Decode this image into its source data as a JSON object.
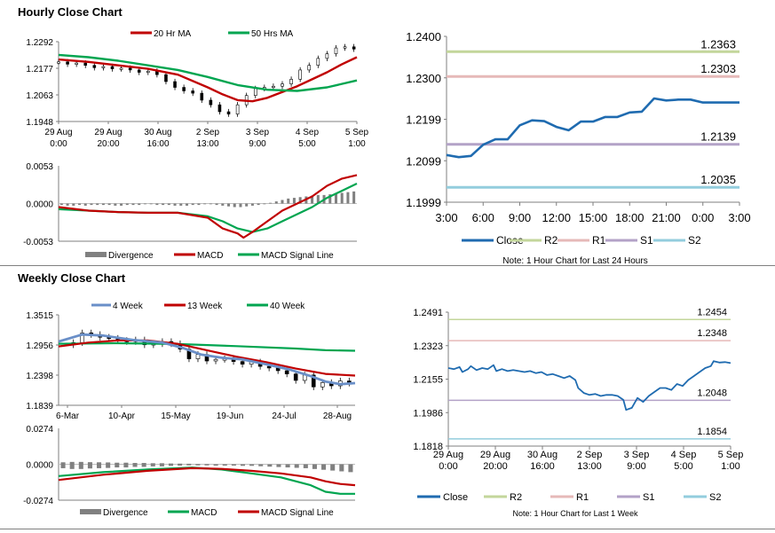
{
  "sections": {
    "hourly_title": "Hourly Close Chart",
    "weekly_title": "Weekly Close Chart"
  },
  "colors": {
    "close": "#1f6bb0",
    "ma_red": "#c00000",
    "ma_green": "#00a550",
    "four_week": "#6a8fc8",
    "r2": "#c3d69b",
    "r1": "#e6b9b8",
    "s1": "#b3a2c7",
    "s2": "#93cddd",
    "divergence": "#808080",
    "candle": "#000000"
  },
  "chart_data": [
    {
      "id": "hourly_price",
      "type": "line",
      "title": "",
      "legend": [
        "20 Hr MA",
        "50 Hrs MA"
      ],
      "legend_position": "top",
      "ylim": [
        1.1948,
        1.2292
      ],
      "yticks": [
        "1.2292",
        "1.2177",
        "1.2063",
        "1.1948"
      ],
      "xticks": [
        [
          "29 Aug",
          "0:00"
        ],
        [
          "29 Aug",
          "20:00"
        ],
        [
          "30 Aug",
          "16:00"
        ],
        [
          "2 Sep",
          "13:00"
        ],
        [
          "3 Sep",
          "9:00"
        ],
        [
          "4 Sep",
          "5:00"
        ],
        [
          "5 Sep",
          "1:00"
        ]
      ],
      "xrange": [
        0,
        100
      ],
      "series": [
        {
          "name": "Close (candles)",
          "x": [
            0,
            3,
            6,
            9,
            12,
            15,
            18,
            21,
            24,
            27,
            30,
            33,
            36,
            39,
            42,
            45,
            48,
            51,
            54,
            57,
            60,
            63,
            66,
            69,
            72,
            75,
            78,
            81,
            84,
            87,
            90,
            93,
            96,
            99
          ],
          "values": [
            1.2205,
            1.2195,
            1.22,
            1.219,
            1.218,
            1.2185,
            1.2175,
            1.2178,
            1.217,
            1.216,
            1.2165,
            1.215,
            1.212,
            1.2095,
            1.208,
            1.207,
            1.204,
            1.202,
            1.199,
            1.198,
            1.202,
            1.206,
            1.209,
            1.2095,
            1.21,
            1.211,
            1.213,
            1.217,
            1.219,
            1.222,
            1.224,
            1.2265,
            1.227,
            1.226
          ]
        },
        {
          "name": "20 Hr MA",
          "x": [
            0,
            10,
            20,
            30,
            40,
            50,
            55,
            60,
            65,
            70,
            75,
            80,
            85,
            90,
            95,
            100
          ],
          "values": [
            1.2215,
            1.2205,
            1.219,
            1.2175,
            1.215,
            1.2095,
            1.2065,
            1.204,
            1.2035,
            1.205,
            1.2075,
            1.21,
            1.213,
            1.216,
            1.2195,
            1.2225
          ]
        },
        {
          "name": "50 Hrs MA",
          "x": [
            0,
            10,
            20,
            30,
            40,
            50,
            60,
            70,
            80,
            90,
            100
          ],
          "values": [
            1.2235,
            1.2225,
            1.221,
            1.219,
            1.217,
            1.214,
            1.2105,
            1.2085,
            1.208,
            1.2095,
            1.2125
          ]
        }
      ]
    },
    {
      "id": "hourly_macd",
      "type": "bar",
      "title": "",
      "legend": [
        "Divergence",
        "MACD",
        "MACD Signal Line"
      ],
      "legend_position": "bottom",
      "ylim": [
        -0.0053,
        0.0053
      ],
      "yticks": [
        "0.0053",
        "0.0000",
        "-0.0053"
      ],
      "xrange": [
        0,
        100
      ],
      "divergence": [
        -0.0002,
        -0.0003,
        -0.0003,
        -0.0002,
        -0.0003,
        -0.0002,
        -0.0002,
        -0.0002,
        -0.0002,
        -0.0003,
        -0.0003,
        -0.0002,
        -0.0002,
        -0.0002,
        -0.0001,
        -0.0001,
        -0.0002,
        -0.0002,
        -0.0002,
        -0.0003,
        -0.0003,
        -0.0003,
        -0.0002,
        -0.0002,
        -0.0001,
        -0.0001,
        -0.0002,
        -0.0003,
        -0.0004,
        -0.0005,
        -0.0005,
        -0.0004,
        -0.0003,
        -0.0002,
        -0.0001,
        0.0001,
        0.0003,
        0.0005,
        0.0007,
        0.0008,
        0.0009,
        0.001,
        0.0011,
        0.0012,
        0.0012,
        0.0013,
        0.0014,
        0.0015,
        0.0016,
        0.0017
      ],
      "series": [
        {
          "name": "MACD",
          "x": [
            0,
            10,
            20,
            30,
            40,
            50,
            55,
            60,
            62,
            65,
            70,
            75,
            80,
            85,
            90,
            95,
            100
          ],
          "values": [
            -0.0005,
            -0.001,
            -0.0012,
            -0.0013,
            -0.0013,
            -0.002,
            -0.0035,
            -0.0042,
            -0.0048,
            -0.004,
            -0.0025,
            -0.001,
            0.0,
            0.001,
            0.0025,
            0.0035,
            0.004
          ]
        },
        {
          "name": "MACD Signal Line",
          "x": [
            0,
            10,
            20,
            30,
            40,
            50,
            55,
            60,
            65,
            70,
            75,
            80,
            85,
            90,
            95,
            100
          ],
          "values": [
            -0.0008,
            -0.001,
            -0.0012,
            -0.0013,
            -0.0013,
            -0.0018,
            -0.0025,
            -0.0035,
            -0.004,
            -0.0035,
            -0.0025,
            -0.0015,
            -0.0005,
            0.0008,
            0.0018,
            0.0028
          ]
        }
      ]
    },
    {
      "id": "hourly_pivot",
      "type": "line",
      "title": "",
      "note": "Note: 1 Hour Chart for Last 24 Hours",
      "legend": [
        "Close",
        "R2",
        "R1",
        "S1",
        "S2"
      ],
      "legend_position": "bottom",
      "ylim": [
        1.1999,
        1.24
      ],
      "yticks": [
        "1.2400",
        "1.2300",
        "1.2199",
        "1.2099",
        "1.1999"
      ],
      "categories": [
        "3:00",
        "6:00",
        "9:00",
        "12:00",
        "15:00",
        "18:00",
        "21:00",
        "0:00",
        "3:00"
      ],
      "levels": [
        {
          "name": "R2",
          "value": 1.2363,
          "label": "1.2363"
        },
        {
          "name": "R1",
          "value": 1.2303,
          "label": "1.2303"
        },
        {
          "name": "S1",
          "value": 1.2139,
          "label": "1.2139"
        },
        {
          "name": "S2",
          "value": 1.2035,
          "label": "1.2035"
        }
      ],
      "series": [
        {
          "name": "Close",
          "x": [
            0,
            1,
            2,
            3,
            4,
            5,
            6,
            7,
            8,
            9,
            10,
            11,
            12,
            13,
            14,
            15,
            16,
            17,
            18,
            19,
            20,
            21,
            22,
            23,
            24
          ],
          "values": [
            1.2113,
            1.2108,
            1.2111,
            1.2138,
            1.2151,
            1.2151,
            1.2185,
            1.2197,
            1.2195,
            1.2181,
            1.2173,
            1.2194,
            1.2194,
            1.2205,
            1.2205,
            1.2216,
            1.2218,
            1.225,
            1.2245,
            1.2247,
            1.2247,
            1.224,
            1.224,
            1.224,
            1.224
          ]
        }
      ]
    },
    {
      "id": "weekly_price",
      "type": "line",
      "title": "",
      "legend": [
        "4 Week",
        "13 Week",
        "40 Week"
      ],
      "legend_position": "top",
      "ylim": [
        1.1839,
        1.3515
      ],
      "yticks": [
        "1.3515",
        "1.2956",
        "1.2398",
        "1.1839"
      ],
      "xticks": [
        "6-Mar",
        "10-Apr",
        "15-May",
        "19-Jun",
        "24-Jul",
        "28-Aug"
      ],
      "xrange": [
        0,
        100
      ],
      "series": [
        {
          "name": "Weekly candles",
          "x": [
            5,
            8,
            11,
            14,
            17,
            20,
            23,
            26,
            29,
            32,
            35,
            38,
            41,
            44,
            47,
            50,
            53,
            56,
            59,
            62,
            65,
            68,
            71,
            74,
            77,
            80,
            83,
            86,
            89,
            92,
            95,
            98
          ],
          "values": [
            1.3,
            1.318,
            1.315,
            1.31,
            1.308,
            1.304,
            1.302,
            1.305,
            1.296,
            1.298,
            1.302,
            1.298,
            1.288,
            1.27,
            1.278,
            1.266,
            1.269,
            1.27,
            1.265,
            1.26,
            1.264,
            1.256,
            1.253,
            1.248,
            1.242,
            1.23,
            1.24,
            1.218,
            1.226,
            1.22,
            1.229,
            1.225
          ]
        },
        {
          "name": "4 Week",
          "x": [
            0,
            8,
            15,
            25,
            35,
            42,
            48,
            55,
            62,
            70,
            78,
            85,
            90,
            95,
            100
          ],
          "values": [
            1.302,
            1.315,
            1.313,
            1.305,
            1.3,
            1.29,
            1.278,
            1.272,
            1.269,
            1.26,
            1.25,
            1.238,
            1.228,
            1.223,
            1.225
          ]
        },
        {
          "name": "13 Week",
          "x": [
            0,
            10,
            20,
            30,
            40,
            50,
            60,
            70,
            80,
            90,
            100
          ],
          "values": [
            1.293,
            1.3,
            1.304,
            1.304,
            1.298,
            1.286,
            1.274,
            1.264,
            1.252,
            1.242,
            1.239
          ]
        },
        {
          "name": "40 Week",
          "x": [
            0,
            20,
            40,
            60,
            80,
            90,
            100
          ],
          "values": [
            1.298,
            1.299,
            1.2975,
            1.2935,
            1.289,
            1.286,
            1.285
          ]
        }
      ]
    },
    {
      "id": "weekly_macd",
      "type": "bar",
      "title": "",
      "legend": [
        "Divergence",
        "MACD",
        "MACD Signal Line"
      ],
      "legend_position": "bottom",
      "ylim": [
        -0.0274,
        0.0274
      ],
      "yticks": [
        "0.0274",
        "0.0000",
        "-0.0274"
      ],
      "xrange": [
        0,
        100
      ],
      "divergence": [
        0.0015,
        0.0018,
        0.0018,
        0.0016,
        0.0015,
        0.0014,
        0.0012,
        0.0012,
        0.001,
        0.001,
        0.0008,
        0.0008,
        0.0006,
        0.0005,
        0.0004,
        0.0002,
        0.0002,
        0.0,
        -0.0002,
        -0.0003,
        -0.0004,
        -0.0004,
        -0.0005,
        -0.0006,
        -0.0007,
        -0.0008,
        -0.0009,
        -0.001,
        -0.0012,
        -0.0014,
        -0.0016,
        -0.0018,
        -0.002
      ],
      "series": [
        {
          "name": "MACD",
          "x": [
            0,
            15,
            30,
            45,
            55,
            65,
            75,
            85,
            90,
            95,
            100
          ],
          "values": [
            -0.009,
            -0.006,
            -0.004,
            -0.0025,
            -0.004,
            -0.007,
            -0.01,
            -0.016,
            -0.021,
            -0.0225,
            -0.0225
          ]
        },
        {
          "name": "MACD Signal Line",
          "x": [
            0,
            15,
            30,
            45,
            55,
            65,
            75,
            85,
            90,
            95,
            100
          ],
          "values": [
            -0.012,
            -0.008,
            -0.005,
            -0.003,
            -0.0035,
            -0.005,
            -0.007,
            -0.01,
            -0.013,
            -0.015,
            -0.016
          ]
        }
      ]
    },
    {
      "id": "weekly_pivot",
      "type": "line",
      "title": "",
      "note": "Note: 1 Hour Chart for Last 1 Week",
      "legend": [
        "Close",
        "R2",
        "R1",
        "S1",
        "S2"
      ],
      "legend_position": "bottom",
      "ylim": [
        1.1818,
        1.2491
      ],
      "yticks": [
        "1.2491",
        "1.2323",
        "1.2155",
        "1.1986",
        "1.1818"
      ],
      "categories": [
        [
          "29 Aug",
          "0:00"
        ],
        [
          "29 Aug",
          "20:00"
        ],
        [
          "30 Aug",
          "16:00"
        ],
        [
          "2 Sep",
          "13:00"
        ],
        [
          "3 Sep",
          "9:00"
        ],
        [
          "4 Sep",
          "5:00"
        ],
        [
          "5 Sep",
          "1:00"
        ]
      ],
      "levels": [
        {
          "name": "R2",
          "value": 1.2454,
          "label": "1.2454"
        },
        {
          "name": "R1",
          "value": 1.2348,
          "label": "1.2348"
        },
        {
          "name": "S1",
          "value": 1.2048,
          "label": "1.2048"
        },
        {
          "name": "S2",
          "value": 1.1854,
          "label": "1.1854"
        }
      ],
      "series": [
        {
          "name": "Close",
          "x": [
            0,
            2,
            4,
            5,
            7,
            8,
            10,
            12,
            14,
            16,
            17,
            19,
            21,
            23,
            25,
            27,
            29,
            31,
            33,
            35,
            37,
            39,
            41,
            43,
            45,
            46,
            48,
            50,
            52,
            54,
            56,
            58,
            60,
            62,
            63,
            65,
            67,
            69,
            71,
            73,
            75,
            77,
            79,
            81,
            83,
            85,
            87,
            89,
            91,
            93,
            94,
            96,
            98,
            100
          ],
          "values": [
            1.221,
            1.2205,
            1.2215,
            1.219,
            1.2205,
            1.222,
            1.22,
            1.221,
            1.2205,
            1.2225,
            1.2195,
            1.2205,
            1.2195,
            1.22,
            1.2195,
            1.219,
            1.2195,
            1.2185,
            1.219,
            1.2175,
            1.218,
            1.217,
            1.216,
            1.217,
            1.215,
            1.211,
            1.2085,
            1.2075,
            1.208,
            1.207,
            1.2075,
            1.2075,
            1.207,
            1.205,
            1.2,
            1.201,
            1.206,
            1.204,
            1.207,
            1.209,
            1.211,
            1.211,
            1.21,
            1.213,
            1.212,
            1.215,
            1.217,
            1.219,
            1.221,
            1.222,
            1.2245,
            1.2238,
            1.224,
            1.2235
          ]
        }
      ]
    }
  ]
}
